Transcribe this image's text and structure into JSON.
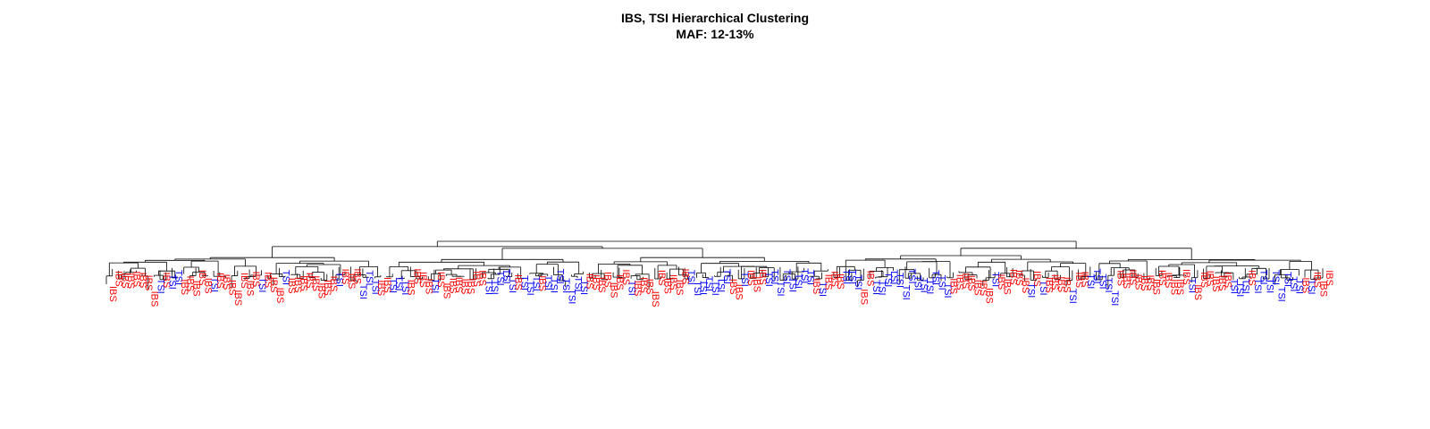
{
  "chart_data": {
    "type": "dendrogram",
    "title": "IBS, TSI Hierarchical Clustering",
    "subtitle": "MAF: 12-13%",
    "leaf_label_colors": {
      "IBS": "#ff0000",
      "TSI": "#0000ff"
    },
    "leaves": [
      "IBS",
      "IBS",
      "IBS",
      "IBS",
      "IBS",
      "IBS",
      "IBS",
      "IBS",
      "TSI",
      "IBS",
      "TSI",
      "TSI",
      "IBS",
      "IBS",
      "IBS",
      "IBS",
      "IBS",
      "TSI",
      "IBS",
      "IBS",
      "IBS",
      "IBS",
      "IBS",
      "IBS",
      "IBS",
      "TSI",
      "IBS",
      "IBS",
      "IBS",
      "TSI",
      "IBS",
      "IBS",
      "IBS",
      "IBS",
      "IBS",
      "IBS",
      "IBS",
      "IBS",
      "TSI",
      "IBS",
      "IBS",
      "IBS",
      "TSI",
      "TSI",
      "TSI",
      "IBS",
      "IBS",
      "TSI",
      "TSI",
      "TSI",
      "IBS",
      "IBS",
      "IBS",
      "IBS",
      "TSI",
      "IBS",
      "IBS",
      "IBS",
      "IBS",
      "IBS",
      "IBS",
      "IBS",
      "IBS",
      "TSI",
      "TSI",
      "TSI",
      "TSI",
      "TSI",
      "IBS",
      "TSI",
      "TSI",
      "TSI",
      "IBS",
      "TSI",
      "TSI",
      "TSI",
      "TSI",
      "TSI",
      "TSI",
      "TSI",
      "IBS",
      "IBS",
      "IBS",
      "IBS",
      "IBS",
      "IBS",
      "IBS",
      "TSI",
      "IBS",
      "IBS",
      "IBS",
      "IBS",
      "IBS",
      "IBS",
      "IBS",
      "IBS",
      "IBS",
      "TSI",
      "TSI",
      "TSI",
      "TSI",
      "TSI",
      "TSI",
      "TSI",
      "IBS",
      "IBS",
      "TSI",
      "IBS",
      "IBS",
      "IBS",
      "TSI",
      "TSI",
      "TSI",
      "TSI",
      "TSI",
      "TSI",
      "TSI",
      "TSI",
      "IBS",
      "TSI",
      "IBS",
      "IBS",
      "IBS",
      "TSI",
      "TSI",
      "TSI",
      "IBS",
      "IBS",
      "TSI",
      "TSI",
      "TSI",
      "TSI",
      "TSI",
      "TSI",
      "TSI",
      "TSI",
      "TSI",
      "TSI",
      "TSI",
      "TSI",
      "TSI",
      "IBS",
      "IBS",
      "IBS",
      "IBS",
      "IBS",
      "IBS",
      "IBS",
      "TSI",
      "IBS",
      "IBS",
      "IBS",
      "IBS",
      "IBS",
      "TSI",
      "IBS",
      "TSI",
      "IBS",
      "IBS",
      "IBS",
      "IBS",
      "TSI",
      "IBS",
      "IBS",
      "TSI",
      "TSI",
      "TSI",
      "TSI",
      "TSI",
      "IBS",
      "IBS",
      "IBS",
      "IBS",
      "IBS",
      "IBS",
      "IBS",
      "IBS",
      "IBS",
      "IBS",
      "IBS",
      "IBS",
      "TSI",
      "IBS",
      "IBS",
      "IBS",
      "IBS",
      "IBS",
      "IBS",
      "TSI",
      "TSI",
      "TSI",
      "IBS",
      "TSI",
      "TSI",
      "TSI",
      "TSI",
      "TSI",
      "TSI",
      "TSI",
      "TSI",
      "IBS",
      "TSI",
      "IBS",
      "IBS",
      "IBS"
    ]
  }
}
